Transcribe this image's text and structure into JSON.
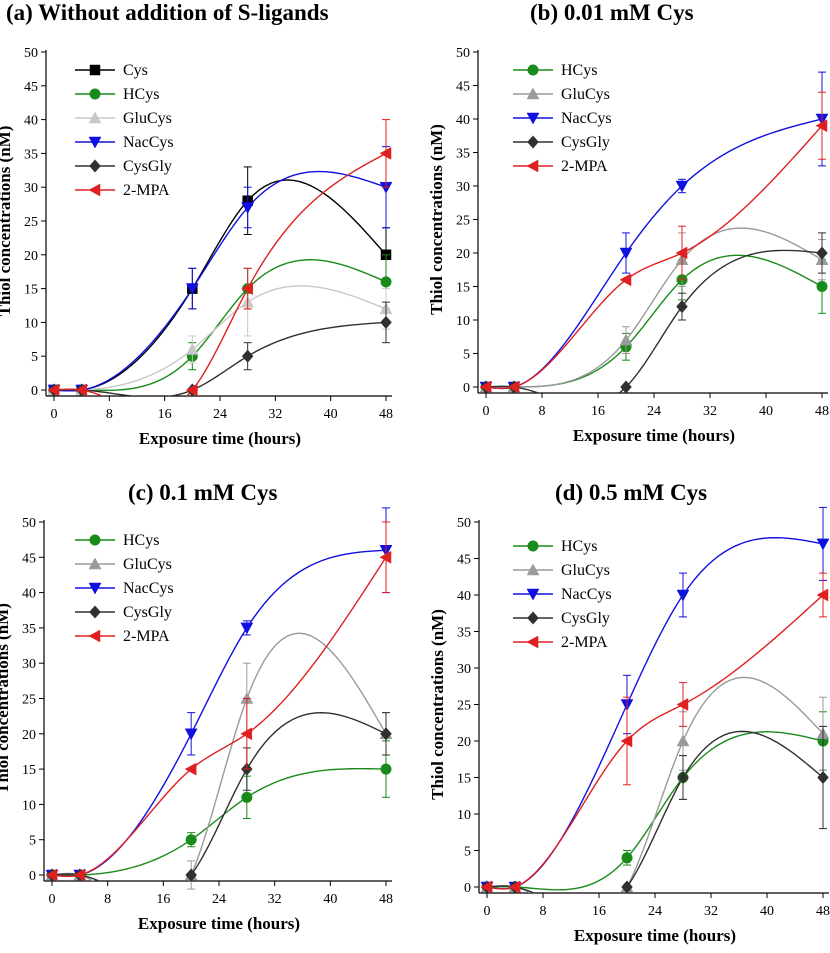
{
  "panels": [
    {
      "id": "a",
      "title": "(a)   Without addition of S-ligands",
      "chart_data": {
        "type": "line",
        "xlabel": "Exposure time (hours)",
        "ylabel": "Thiol concentrations (nM)",
        "xlim": [
          0,
          48
        ],
        "ylim": [
          0,
          50
        ],
        "xticks": [
          0,
          8,
          16,
          24,
          32,
          40,
          48
        ],
        "yticks": [
          0,
          5,
          10,
          15,
          20,
          25,
          30,
          35,
          40,
          45,
          50
        ],
        "x": [
          0,
          4,
          20,
          28,
          48
        ],
        "series": [
          {
            "name": "Cys",
            "color": "#000000",
            "marker": "square",
            "values": [
              0,
              0,
              15,
              28,
              20
            ],
            "errors": [
              0,
              0,
              3,
              5,
              4
            ]
          },
          {
            "name": "HCys",
            "color": "#1a8a1a",
            "marker": "circle",
            "values": [
              0,
              0,
              5,
              15,
              16
            ],
            "errors": [
              0,
              0,
              2,
              3,
              4
            ]
          },
          {
            "name": "GluCys",
            "color": "#c8c8c8",
            "marker": "triangle-up",
            "values": [
              0,
              0,
              6,
              13,
              12
            ],
            "errors": [
              0,
              0,
              2,
              5,
              3
            ]
          },
          {
            "name": "NacCys",
            "color": "#1010e0",
            "marker": "triangle-down",
            "values": [
              0,
              0,
              15,
              27,
              30
            ],
            "errors": [
              0,
              0,
              3,
              3,
              6
            ]
          },
          {
            "name": "CysGly",
            "color": "#303030",
            "marker": "diamond",
            "values": [
              0,
              0,
              0,
              5,
              10
            ],
            "errors": [
              0,
              0,
              0,
              2,
              3
            ]
          },
          {
            "name": "2-MPA",
            "color": "#e02020",
            "marker": "triangle-left",
            "values": [
              0,
              0,
              0,
              15,
              35
            ],
            "errors": [
              0,
              0,
              0,
              3,
              5
            ]
          }
        ]
      }
    },
    {
      "id": "b",
      "title": "(b)   0.01 mM Cys",
      "chart_data": {
        "type": "line",
        "xlabel": "Exposure time (hours)",
        "ylabel": "Thiol concentrations (nM)",
        "xlim": [
          0,
          48
        ],
        "ylim": [
          0,
          50
        ],
        "xticks": [
          0,
          8,
          16,
          24,
          32,
          40,
          48
        ],
        "yticks": [
          0,
          5,
          10,
          15,
          20,
          25,
          30,
          35,
          40,
          45,
          50
        ],
        "x": [
          0,
          4,
          20,
          28,
          48
        ],
        "series": [
          {
            "name": "HCys",
            "color": "#1a8a1a",
            "marker": "circle",
            "values": [
              0,
              0,
              6,
              16,
              15
            ],
            "errors": [
              0,
              0,
              2,
              3,
              4
            ]
          },
          {
            "name": "GluCys",
            "color": "#9a9a9a",
            "marker": "triangle-up",
            "values": [
              0,
              0,
              7,
              19,
              19
            ],
            "errors": [
              0,
              0,
              2,
              4,
              3
            ]
          },
          {
            "name": "NacCys",
            "color": "#1010e0",
            "marker": "triangle-down",
            "values": [
              0,
              0,
              20,
              30,
              40
            ],
            "errors": [
              0,
              0,
              3,
              1,
              7
            ]
          },
          {
            "name": "CysGly",
            "color": "#303030",
            "marker": "diamond",
            "values": [
              0,
              0,
              0,
              12,
              20
            ],
            "errors": [
              0,
              0,
              0,
              2,
              3
            ]
          },
          {
            "name": "2-MPA",
            "color": "#e02020",
            "marker": "triangle-left",
            "values": [
              0,
              0,
              16,
              20,
              39
            ],
            "errors": [
              0,
              0,
              0,
              4,
              5
            ]
          }
        ]
      }
    },
    {
      "id": "c",
      "title": "(c)   0.1 mM Cys",
      "chart_data": {
        "type": "line",
        "xlabel": "Exposure time (hours)",
        "ylabel": "Thiol concentrations (nM)",
        "xlim": [
          0,
          48
        ],
        "ylim": [
          0,
          50
        ],
        "xticks": [
          0,
          8,
          16,
          24,
          32,
          40,
          48
        ],
        "yticks": [
          0,
          5,
          10,
          15,
          20,
          25,
          30,
          35,
          40,
          45,
          50
        ],
        "x": [
          0,
          4,
          20,
          28,
          48
        ],
        "series": [
          {
            "name": "HCys",
            "color": "#1a8a1a",
            "marker": "circle",
            "values": [
              0,
              0,
              5,
              11,
              15
            ],
            "errors": [
              0,
              0,
              1,
              3,
              4
            ]
          },
          {
            "name": "GluCys",
            "color": "#9a9a9a",
            "marker": "triangle-up",
            "values": [
              0,
              0,
              0,
              25,
              20
            ],
            "errors": [
              0,
              0,
              2,
              5,
              3
            ]
          },
          {
            "name": "NacCys",
            "color": "#1010e0",
            "marker": "triangle-down",
            "values": [
              0,
              0,
              20,
              35,
              46
            ],
            "errors": [
              0,
              0,
              3,
              1,
              6
            ]
          },
          {
            "name": "CysGly",
            "color": "#303030",
            "marker": "diamond",
            "values": [
              0,
              0,
              0,
              15,
              20
            ],
            "errors": [
              0,
              0,
              0,
              3,
              3
            ]
          },
          {
            "name": "2-MPA",
            "color": "#e02020",
            "marker": "triangle-left",
            "values": [
              0,
              0,
              15,
              20,
              45
            ],
            "errors": [
              0,
              0,
              0,
              5,
              5
            ]
          }
        ]
      }
    },
    {
      "id": "d",
      "title": "(d)   0.5 mM Cys",
      "chart_data": {
        "type": "line",
        "xlabel": "Exposure time (hours)",
        "ylabel": "Thiol concentrations (nM)",
        "xlim": [
          0,
          48
        ],
        "ylim": [
          0,
          50
        ],
        "xticks": [
          0,
          8,
          16,
          24,
          32,
          40,
          48
        ],
        "yticks": [
          0,
          5,
          10,
          15,
          20,
          25,
          30,
          35,
          40,
          45,
          50
        ],
        "x": [
          0,
          4,
          20,
          28,
          48
        ],
        "series": [
          {
            "name": "HCys",
            "color": "#1a8a1a",
            "marker": "circle",
            "values": [
              0,
              0,
              4,
              15,
              20
            ],
            "errors": [
              0,
              0,
              1,
              3,
              4
            ]
          },
          {
            "name": "GluCys",
            "color": "#9a9a9a",
            "marker": "triangle-up",
            "values": [
              0,
              0,
              0,
              20,
              21
            ],
            "errors": [
              0,
              0,
              0,
              4,
              5
            ]
          },
          {
            "name": "NacCys",
            "color": "#1010e0",
            "marker": "triangle-down",
            "values": [
              0,
              0,
              25,
              40,
              47
            ],
            "errors": [
              0,
              0,
              4,
              3,
              5
            ]
          },
          {
            "name": "CysGly",
            "color": "#303030",
            "marker": "diamond",
            "values": [
              0,
              0,
              0,
              15,
              15
            ],
            "errors": [
              0,
              0,
              0,
              3,
              7
            ]
          },
          {
            "name": "2-MPA",
            "color": "#e02020",
            "marker": "triangle-left",
            "values": [
              0,
              0,
              20,
              25,
              40
            ],
            "errors": [
              0,
              0,
              6,
              3,
              3
            ]
          }
        ]
      }
    }
  ]
}
